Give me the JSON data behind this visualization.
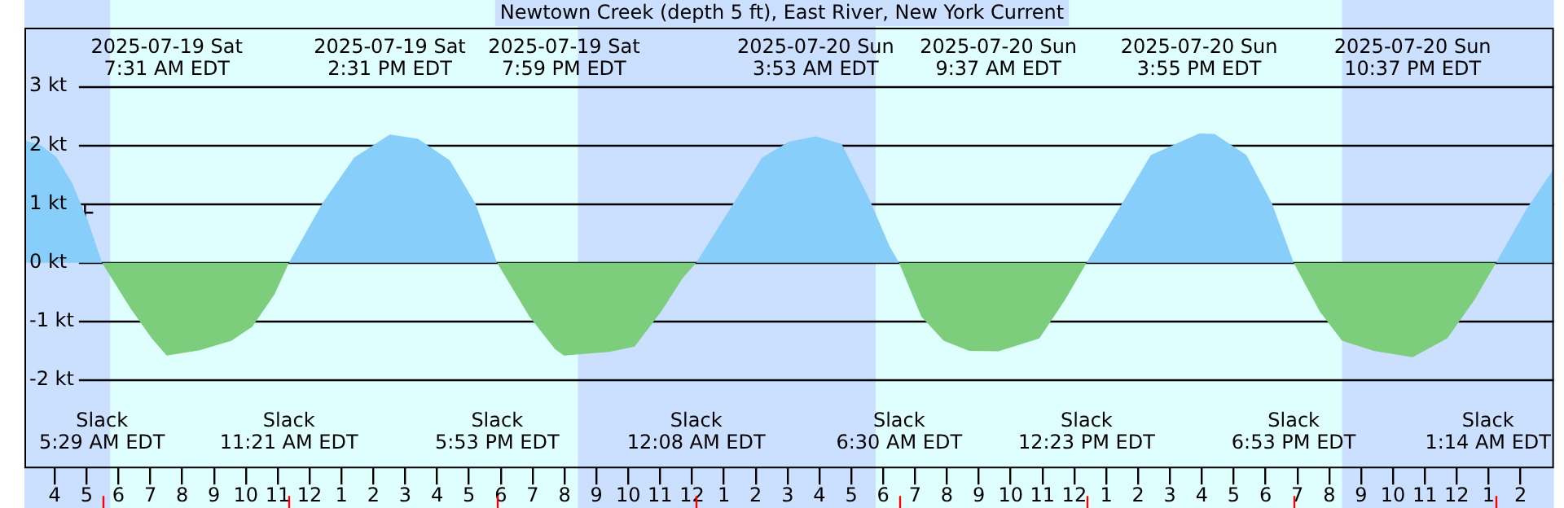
{
  "chart_data": {
    "type": "area",
    "title": "Newtown Creek (depth 5 ft), East River, New York Current",
    "x": [
      "2025-07-19T03:03",
      "2025-07-19T03:33",
      "2025-07-19T04:03",
      "2025-07-19T04:33",
      "2025-07-19T05:03",
      "2025-07-19T05:29",
      "2025-07-19T06:23",
      "2025-07-19T07:03",
      "2025-07-19T07:31",
      "2025-07-19T08:33",
      "2025-07-19T09:33",
      "2025-07-19T10:12",
      "2025-07-19T10:54",
      "2025-07-19T11:21",
      "2025-07-19T12:24",
      "2025-07-19T13:24",
      "2025-07-19T14:31",
      "2025-07-19T15:24",
      "2025-07-19T16:24",
      "2025-07-19T17:12",
      "2025-07-19T17:53",
      "2025-07-19T18:54",
      "2025-07-19T19:42",
      "2025-07-19T19:59",
      "2025-07-19T21:24",
      "2025-07-19T22:12",
      "2025-07-19T23:03",
      "2025-07-19T23:42",
      "2025-07-20T00:08",
      "2025-07-20T01:12",
      "2025-07-20T02:12",
      "2025-07-20T03:03",
      "2025-07-20T03:53",
      "2025-07-20T04:42",
      "2025-07-20T05:33",
      "2025-07-20T06:12",
      "2025-07-20T06:30",
      "2025-07-20T07:12",
      "2025-07-20T07:54",
      "2025-07-20T08:42",
      "2025-07-20T09:37",
      "2025-07-20T10:54",
      "2025-07-20T11:42",
      "2025-07-20T12:23",
      "2025-07-20T13:24",
      "2025-07-20T14:24",
      "2025-07-20T15:55",
      "2025-07-20T16:24",
      "2025-07-20T17:24",
      "2025-07-20T18:12",
      "2025-07-20T18:53",
      "2025-07-20T19:42",
      "2025-07-20T20:24",
      "2025-07-20T21:24",
      "2025-07-20T22:37",
      "2025-07-20T23:42",
      "2025-07-21T00:33",
      "2025-07-21T01:14",
      "2025-07-21T02:12",
      "2025-07-21T03:03"
    ],
    "series": [
      {
        "color": "#87cefa",
        "values": [
          2.08,
          2.0,
          1.8,
          1.35,
          0.7,
          0,
          null,
          null,
          null,
          null,
          null,
          null,
          null,
          0,
          1.01,
          1.79,
          2.18,
          2.11,
          1.74,
          1.01,
          0,
          null,
          null,
          null,
          null,
          null,
          null,
          null,
          0,
          0.92,
          1.79,
          2.06,
          2.15,
          2.02,
          1.1,
          0.28,
          0,
          null,
          null,
          null,
          null,
          null,
          null,
          0,
          0.92,
          1.83,
          2.2,
          2.19,
          1.83,
          1.01,
          0,
          null,
          null,
          null,
          null,
          null,
          null,
          0,
          0.92,
          1.6
        ]
      },
      {
        "color": "#7ccd7c",
        "values": [
          null,
          null,
          null,
          null,
          null,
          0,
          -0.78,
          -1.29,
          -1.58,
          -1.49,
          -1.33,
          -1.09,
          -0.54,
          0,
          null,
          null,
          null,
          null,
          null,
          null,
          0,
          -0.92,
          -1.47,
          -1.58,
          -1.52,
          -1.43,
          -0.82,
          -0.27,
          0,
          null,
          null,
          null,
          null,
          null,
          null,
          null,
          0,
          -0.92,
          -1.33,
          -1.5,
          -1.51,
          -1.29,
          -0.64,
          0,
          null,
          null,
          null,
          null,
          null,
          null,
          0,
          -0.83,
          -1.33,
          -1.5,
          -1.61,
          -1.29,
          -0.64,
          0,
          null,
          null
        ]
      },
      {
        "type": "scatter",
        "marker": "cross",
        "color": "#000000",
        "x": [
          "2025-07-19T04:57"
        ],
        "values": [
          0.85
        ]
      }
    ],
    "xlim": [
      "2025-07-19T03:03",
      "2025-07-21T03:03"
    ],
    "xticks": [
      {
        "value": "2025-07-19T04:00",
        "label": "4"
      },
      {
        "value": "2025-07-19T05:00",
        "label": "5"
      },
      {
        "value": "2025-07-19T06:00",
        "label": "6"
      },
      {
        "value": "2025-07-19T07:00",
        "label": "7"
      },
      {
        "value": "2025-07-19T08:00",
        "label": "8"
      },
      {
        "value": "2025-07-19T09:00",
        "label": "9"
      },
      {
        "value": "2025-07-19T10:00",
        "label": "10"
      },
      {
        "value": "2025-07-19T11:00",
        "label": "11"
      },
      {
        "value": "2025-07-19T12:00",
        "label": "12"
      },
      {
        "value": "2025-07-19T13:00",
        "label": "1"
      },
      {
        "value": "2025-07-19T14:00",
        "label": "2"
      },
      {
        "value": "2025-07-19T15:00",
        "label": "3"
      },
      {
        "value": "2025-07-19T16:00",
        "label": "4"
      },
      {
        "value": "2025-07-19T17:00",
        "label": "5"
      },
      {
        "value": "2025-07-19T18:00",
        "label": "6"
      },
      {
        "value": "2025-07-19T19:00",
        "label": "7"
      },
      {
        "value": "2025-07-19T20:00",
        "label": "8"
      },
      {
        "value": "2025-07-19T21:00",
        "label": "9"
      },
      {
        "value": "2025-07-19T22:00",
        "label": "10"
      },
      {
        "value": "2025-07-19T23:00",
        "label": "11"
      },
      {
        "value": "2025-07-20T00:00",
        "label": "12"
      },
      {
        "value": "2025-07-20T01:00",
        "label": "1"
      },
      {
        "value": "2025-07-20T02:00",
        "label": "2"
      },
      {
        "value": "2025-07-20T03:00",
        "label": "3"
      },
      {
        "value": "2025-07-20T04:00",
        "label": "4"
      },
      {
        "value": "2025-07-20T05:00",
        "label": "5"
      },
      {
        "value": "2025-07-20T06:00",
        "label": "6"
      },
      {
        "value": "2025-07-20T07:00",
        "label": "7"
      },
      {
        "value": "2025-07-20T08:00",
        "label": "8"
      },
      {
        "value": "2025-07-20T09:00",
        "label": "9"
      },
      {
        "value": "2025-07-20T10:00",
        "label": "10"
      },
      {
        "value": "2025-07-20T11:00",
        "label": "11"
      },
      {
        "value": "2025-07-20T12:00",
        "label": "12"
      },
      {
        "value": "2025-07-20T13:00",
        "label": "1"
      },
      {
        "value": "2025-07-20T14:00",
        "label": "2"
      },
      {
        "value": "2025-07-20T15:00",
        "label": "3"
      },
      {
        "value": "2025-07-20T16:00",
        "label": "4"
      },
      {
        "value": "2025-07-20T17:00",
        "label": "5"
      },
      {
        "value": "2025-07-20T18:00",
        "label": "6"
      },
      {
        "value": "2025-07-20T19:00",
        "label": "7"
      },
      {
        "value": "2025-07-20T20:00",
        "label": "8"
      },
      {
        "value": "2025-07-20T21:00",
        "label": "9"
      },
      {
        "value": "2025-07-20T22:00",
        "label": "10"
      },
      {
        "value": "2025-07-20T23:00",
        "label": "11"
      },
      {
        "value": "2025-07-21T00:00",
        "label": "12"
      },
      {
        "value": "2025-07-21T01:00",
        "label": "1"
      },
      {
        "value": "2025-07-21T02:00",
        "label": "2"
      }
    ],
    "ylim": [
      -3.5,
      4
    ],
    "yticks": [
      {
        "value": -2,
        "label": "-2 kt"
      },
      {
        "value": -1,
        "label": "-1 kt"
      },
      {
        "value": 0,
        "label": "0 kt"
      },
      {
        "value": 1,
        "label": "1 kt"
      },
      {
        "value": 2,
        "label": "2 kt"
      },
      {
        "value": 3,
        "label": "3 kt"
      }
    ],
    "grid": "y",
    "legend": false,
    "marker": "none",
    "bands": [
      {
        "axis": "x",
        "from": "2025-07-19T03:03",
        "to": "2025-07-19T05:45",
        "color": "#cbdfff"
      },
      {
        "axis": "x",
        "from": "2025-07-19T05:45",
        "to": "2025-07-19T20:25",
        "color": "#dfffff"
      },
      {
        "axis": "x",
        "from": "2025-07-19T20:25",
        "to": "2025-07-20T05:46",
        "color": "#cbdfff"
      },
      {
        "axis": "x",
        "from": "2025-07-20T05:46",
        "to": "2025-07-20T20:24",
        "color": "#dfffff"
      },
      {
        "axis": "x",
        "from": "2025-07-20T20:24",
        "to": "2025-07-21T03:03",
        "color": "#cbdfff"
      }
    ],
    "annotations": [
      "2025-07-19 Sat\n7:31 AM EDT",
      "2025-07-19 Sat\n2:31 PM EDT",
      "2025-07-19 Sat\n7:59 PM EDT",
      "2025-07-20 Sun\n3:53 AM EDT",
      "2025-07-20 Sun\n9:37 AM EDT",
      "2025-07-20 Sun\n3:55 PM EDT",
      "2025-07-20 Sun\n10:37 PM EDT",
      "Slack\n5:29 AM EDT",
      "Slack\n11:21 AM EDT",
      "Slack\n5:53 PM EDT",
      "Slack\n12:08 AM EDT",
      "Slack\n6:30 AM EDT",
      "Slack\n12:23 PM EDT",
      "Slack\n6:53 PM EDT",
      "Slack\n1:14 AM EDT"
    ]
  }
}
